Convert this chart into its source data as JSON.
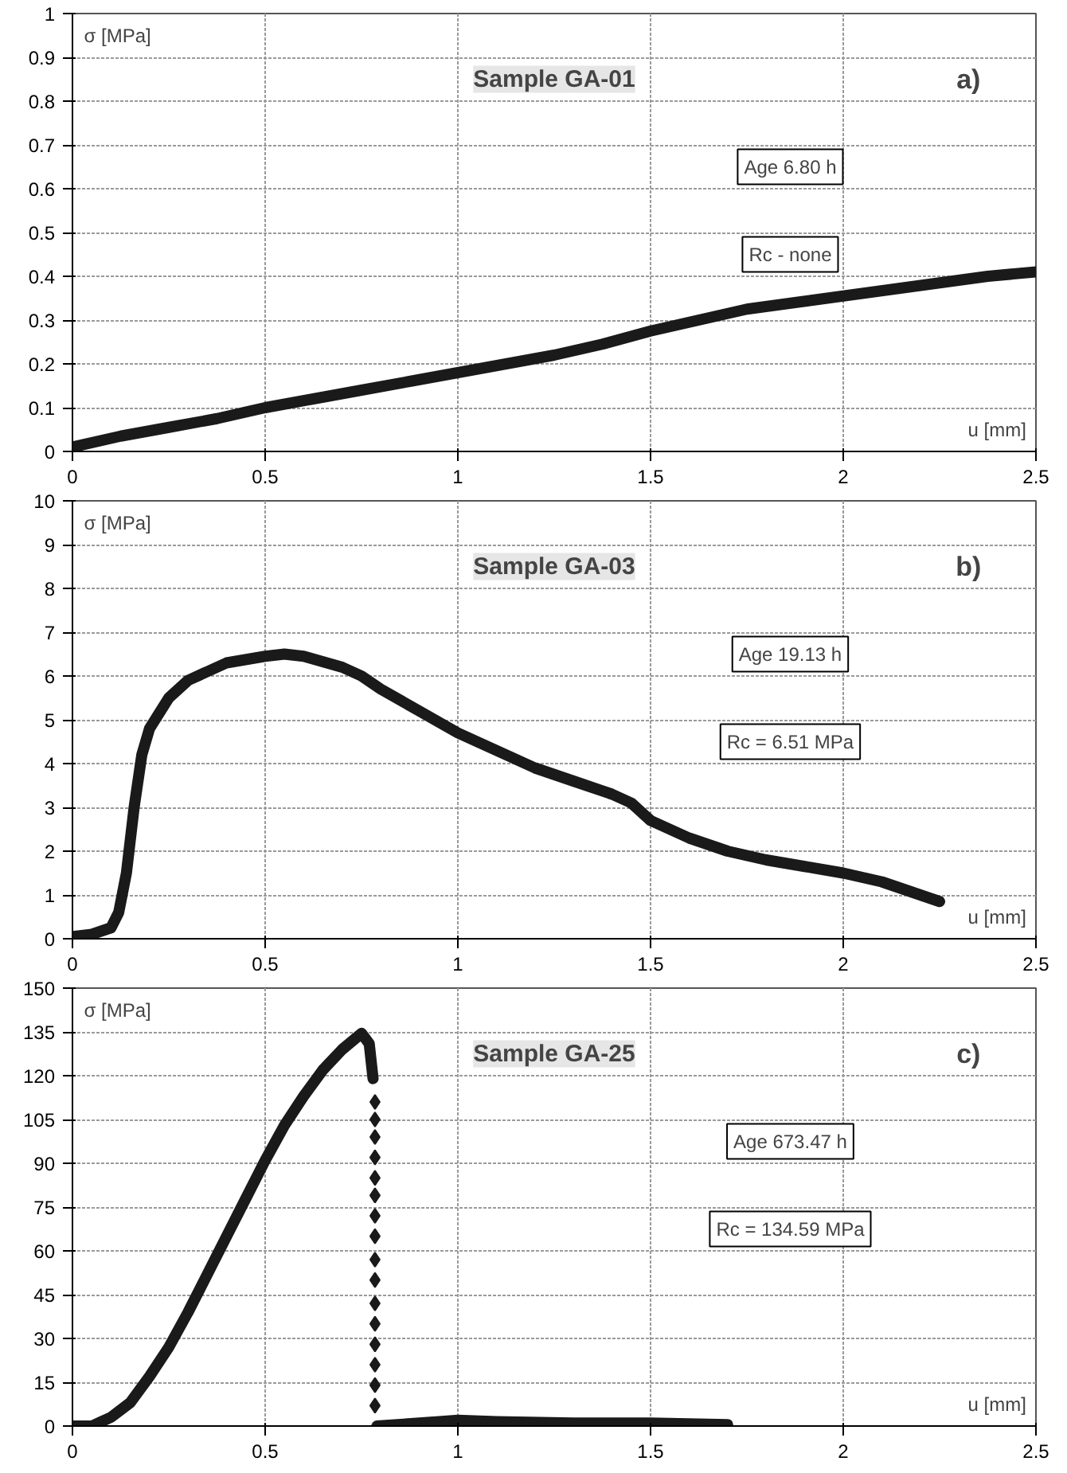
{
  "chart_data": [
    {
      "type": "line",
      "title": "Sample GA-01",
      "xlabel": "u [mm]",
      "ylabel": "σ [MPa]",
      "annotations": [
        "a)",
        "Age 6.80 h",
        "Rc - none"
      ],
      "xlim": [
        0,
        2.5
      ],
      "xticks": [
        0,
        0.5,
        1,
        1.5,
        2,
        2.5
      ],
      "ylim": [
        0,
        1
      ],
      "yticks": [
        0,
        0.1,
        0.2,
        0.3,
        0.4,
        0.5,
        0.6,
        0.7,
        0.8,
        0.9,
        1
      ],
      "grid": true,
      "line_style": "solid",
      "series": [
        {
          "color": "#1a1a1a",
          "x": [
            0,
            0.125,
            0.25,
            0.375,
            0.5,
            0.625,
            0.75,
            0.875,
            1.0,
            1.125,
            1.25,
            1.375,
            1.5,
            1.625,
            1.75,
            1.875,
            2.0,
            2.125,
            2.25,
            2.375,
            2.5
          ],
          "values": [
            0.01,
            0.035,
            0.055,
            0.075,
            0.1,
            0.12,
            0.14,
            0.16,
            0.18,
            0.2,
            0.22,
            0.245,
            0.275,
            0.3,
            0.325,
            0.34,
            0.355,
            0.37,
            0.385,
            0.4,
            0.41
          ]
        }
      ]
    },
    {
      "type": "line",
      "title": "Sample GA-03",
      "xlabel": "u [mm]",
      "ylabel": "σ [MPa]",
      "annotations": [
        "b)",
        "Age 19.13 h",
        "Rc = 6.51 MPa"
      ],
      "xlim": [
        0,
        2.5
      ],
      "xticks": [
        0,
        0.5,
        1,
        1.5,
        2,
        2.5
      ],
      "ylim": [
        0,
        10
      ],
      "yticks": [
        0,
        1,
        2,
        3,
        4,
        5,
        6,
        7,
        8,
        9,
        10
      ],
      "grid": true,
      "line_style": "solid",
      "series": [
        {
          "color": "#1a1a1a",
          "x": [
            0,
            0.05,
            0.1,
            0.12,
            0.14,
            0.16,
            0.18,
            0.2,
            0.25,
            0.3,
            0.35,
            0.4,
            0.5,
            0.55,
            0.6,
            0.7,
            0.75,
            0.8,
            0.9,
            1.0,
            1.1,
            1.2,
            1.3,
            1.4,
            1.45,
            1.5,
            1.6,
            1.7,
            1.8,
            1.9,
            2.0,
            2.1,
            2.2,
            2.25
          ],
          "values": [
            0.05,
            0.1,
            0.25,
            0.6,
            1.5,
            3,
            4.2,
            4.8,
            5.5,
            5.9,
            6.1,
            6.3,
            6.45,
            6.5,
            6.45,
            6.2,
            6.0,
            5.7,
            5.2,
            4.7,
            4.3,
            3.9,
            3.6,
            3.3,
            3.1,
            2.7,
            2.3,
            2.0,
            1.8,
            1.65,
            1.5,
            1.3,
            1.0,
            0.85
          ]
        }
      ]
    },
    {
      "type": "line",
      "title": "Sample GA-25",
      "xlabel": "u [mm]",
      "ylabel": "σ [MPa]",
      "annotations": [
        "c)",
        "Age 673.47 h",
        "Rc = 134.59 MPa"
      ],
      "xlim": [
        0,
        2.5
      ],
      "xticks": [
        0,
        0.5,
        1,
        1.5,
        2,
        2.5
      ],
      "ylim": [
        0,
        150
      ],
      "yticks": [
        0,
        15,
        30,
        45,
        60,
        75,
        90,
        105,
        120,
        135,
        150
      ],
      "grid": true,
      "line_style": "solid",
      "series": [
        {
          "color": "#1a1a1a",
          "x": [
            0,
            0.05,
            0.1,
            0.15,
            0.2,
            0.25,
            0.3,
            0.35,
            0.4,
            0.45,
            0.5,
            0.55,
            0.6,
            0.65,
            0.7,
            0.75,
            0.77,
            0.78
          ],
          "values": [
            0,
            0,
            3,
            8,
            17,
            27,
            39,
            52,
            65,
            78,
            91,
            103,
            113,
            122,
            129,
            134.5,
            131,
            119
          ]
        },
        {
          "type": "scatter",
          "marker": "diamond",
          "color": "#1a1a1a",
          "x": [
            0.785,
            0.785,
            0.785,
            0.785,
            0.785,
            0.785,
            0.785,
            0.785,
            0.785,
            0.785,
            0.785,
            0.785,
            0.785,
            0.785,
            0.785,
            0.785
          ],
          "values": [
            111,
            105,
            99,
            92,
            85,
            79,
            72,
            65,
            57,
            50,
            42,
            35,
            28,
            21,
            14,
            7
          ]
        },
        {
          "color": "#1a1a1a",
          "x": [
            0.79,
            0.9,
            1.0,
            1.1,
            1.3,
            1.5,
            1.7
          ],
          "values": [
            0,
            1,
            2,
            1.5,
            1,
            1,
            0.5
          ]
        }
      ]
    }
  ]
}
